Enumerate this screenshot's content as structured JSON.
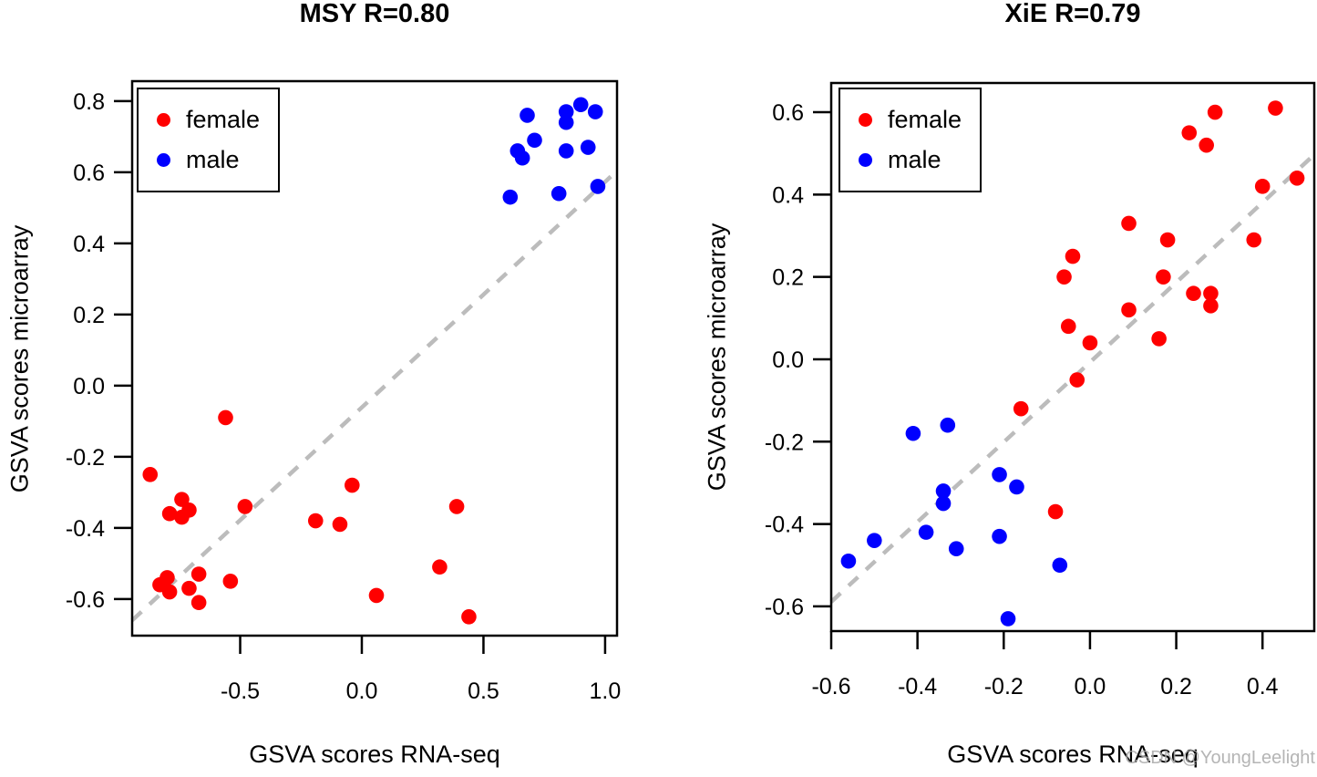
{
  "page": {
    "watermark": "CSDN @YoungLeelight"
  },
  "colors": {
    "female": "#ff0000",
    "male": "#0000ff",
    "dashed_line": "#bcbcbc",
    "axis": "#000000"
  },
  "legend": {
    "items": [
      {
        "label": "female",
        "color": "#ff0000"
      },
      {
        "label": "male",
        "color": "#0000ff"
      }
    ]
  },
  "chart_data": [
    {
      "type": "scatter",
      "title": "MSY R=0.80",
      "xlabel": "GSVA scores RNA-seq",
      "ylabel": "GSVA scores microarray",
      "xlim": [
        -0.944,
        1.049
      ],
      "ylim": [
        -0.703,
        0.856
      ],
      "xtick_values": [
        -0.5,
        0.0,
        0.5,
        1.0
      ],
      "xtick_labels": [
        "-0.5",
        "0.0",
        "0.5",
        "1.0"
      ],
      "ytick_values": [
        0.8,
        0.6,
        0.4,
        0.2,
        0.0,
        -0.2,
        -0.4,
        -0.6
      ],
      "ytick_labels": [
        "0.8",
        "0.6",
        "0.4",
        "0.2",
        "0.0",
        "-0.2",
        "-0.4",
        "-0.6"
      ],
      "grid": false,
      "legend_position": "top-left",
      "dashed_line": {
        "x1": -0.944,
        "y1": -0.66,
        "x2": 1.049,
        "y2": 0.604
      },
      "series": [
        {
          "name": "female",
          "color": "#ff0000",
          "points": [
            [
              -0.87,
              -0.25
            ],
            [
              -0.83,
              -0.56
            ],
            [
              -0.8,
              -0.54
            ],
            [
              -0.79,
              -0.58
            ],
            [
              -0.79,
              -0.36
            ],
            [
              -0.74,
              -0.37
            ],
            [
              -0.74,
              -0.32
            ],
            [
              -0.71,
              -0.35
            ],
            [
              -0.71,
              -0.57
            ],
            [
              -0.67,
              -0.53
            ],
            [
              -0.67,
              -0.61
            ],
            [
              -0.56,
              -0.09
            ],
            [
              -0.54,
              -0.55
            ],
            [
              -0.48,
              -0.34
            ],
            [
              -0.19,
              -0.38
            ],
            [
              -0.09,
              -0.39
            ],
            [
              -0.04,
              -0.28
            ],
            [
              0.06,
              -0.59
            ],
            [
              0.32,
              -0.51
            ],
            [
              0.39,
              -0.34
            ],
            [
              0.44,
              -0.65
            ]
          ]
        },
        {
          "name": "male",
          "color": "#0000ff",
          "points": [
            [
              0.68,
              0.76
            ],
            [
              0.84,
              0.77
            ],
            [
              0.84,
              0.74
            ],
            [
              0.9,
              0.79
            ],
            [
              0.96,
              0.77
            ],
            [
              0.71,
              0.69
            ],
            [
              0.64,
              0.66
            ],
            [
              0.66,
              0.64
            ],
            [
              0.84,
              0.66
            ],
            [
              0.93,
              0.67
            ],
            [
              0.61,
              0.53
            ],
            [
              0.81,
              0.54
            ],
            [
              0.97,
              0.56
            ]
          ]
        }
      ]
    },
    {
      "type": "scatter",
      "title": "XiE R=0.79",
      "xlabel": "GSVA scores RNA-seq",
      "ylabel": "GSVA scores microarray",
      "xlim": [
        -0.6,
        0.52
      ],
      "ylim": [
        -0.66,
        0.671
      ],
      "xtick_values": [
        -0.6,
        -0.4,
        -0.2,
        0.0,
        0.2,
        0.4
      ],
      "xtick_labels": [
        "-0.6",
        "-0.4",
        "-0.2",
        "0.0",
        "0.2",
        "0.4"
      ],
      "ytick_values": [
        0.6,
        0.4,
        0.2,
        0.0,
        -0.2,
        -0.4,
        -0.6
      ],
      "ytick_labels": [
        "0.6",
        "0.4",
        "0.2",
        "0.0",
        "-0.2",
        "-0.4",
        "-0.6"
      ],
      "grid": false,
      "legend_position": "top-left",
      "dashed_line": {
        "x1": -0.6,
        "y1": -0.589,
        "x2": 0.52,
        "y2": 0.497
      },
      "series": [
        {
          "name": "female",
          "color": "#ff0000",
          "points": [
            [
              0.29,
              0.6
            ],
            [
              0.43,
              0.61
            ],
            [
              0.23,
              0.55
            ],
            [
              0.27,
              0.52
            ],
            [
              0.4,
              0.42
            ],
            [
              0.48,
              0.44
            ],
            [
              0.09,
              0.33
            ],
            [
              -0.04,
              0.25
            ],
            [
              -0.06,
              0.2
            ],
            [
              0.18,
              0.29
            ],
            [
              0.17,
              0.2
            ],
            [
              0.38,
              0.29
            ],
            [
              0.24,
              0.16
            ],
            [
              0.28,
              0.16
            ],
            [
              0.28,
              0.13
            ],
            [
              0.16,
              0.05
            ],
            [
              0.09,
              0.12
            ],
            [
              -0.05,
              0.08
            ],
            [
              0.0,
              0.04
            ],
            [
              -0.03,
              -0.05
            ],
            [
              -0.16,
              -0.12
            ],
            [
              -0.08,
              -0.37
            ]
          ]
        },
        {
          "name": "male",
          "color": "#0000ff",
          "points": [
            [
              -0.56,
              -0.49
            ],
            [
              -0.5,
              -0.44
            ],
            [
              -0.41,
              -0.18
            ],
            [
              -0.33,
              -0.16
            ],
            [
              -0.21,
              -0.28
            ],
            [
              -0.17,
              -0.31
            ],
            [
              -0.34,
              -0.32
            ],
            [
              -0.34,
              -0.35
            ],
            [
              -0.38,
              -0.42
            ],
            [
              -0.31,
              -0.46
            ],
            [
              -0.21,
              -0.43
            ],
            [
              -0.07,
              -0.5
            ],
            [
              -0.19,
              -0.63
            ]
          ]
        }
      ]
    }
  ]
}
